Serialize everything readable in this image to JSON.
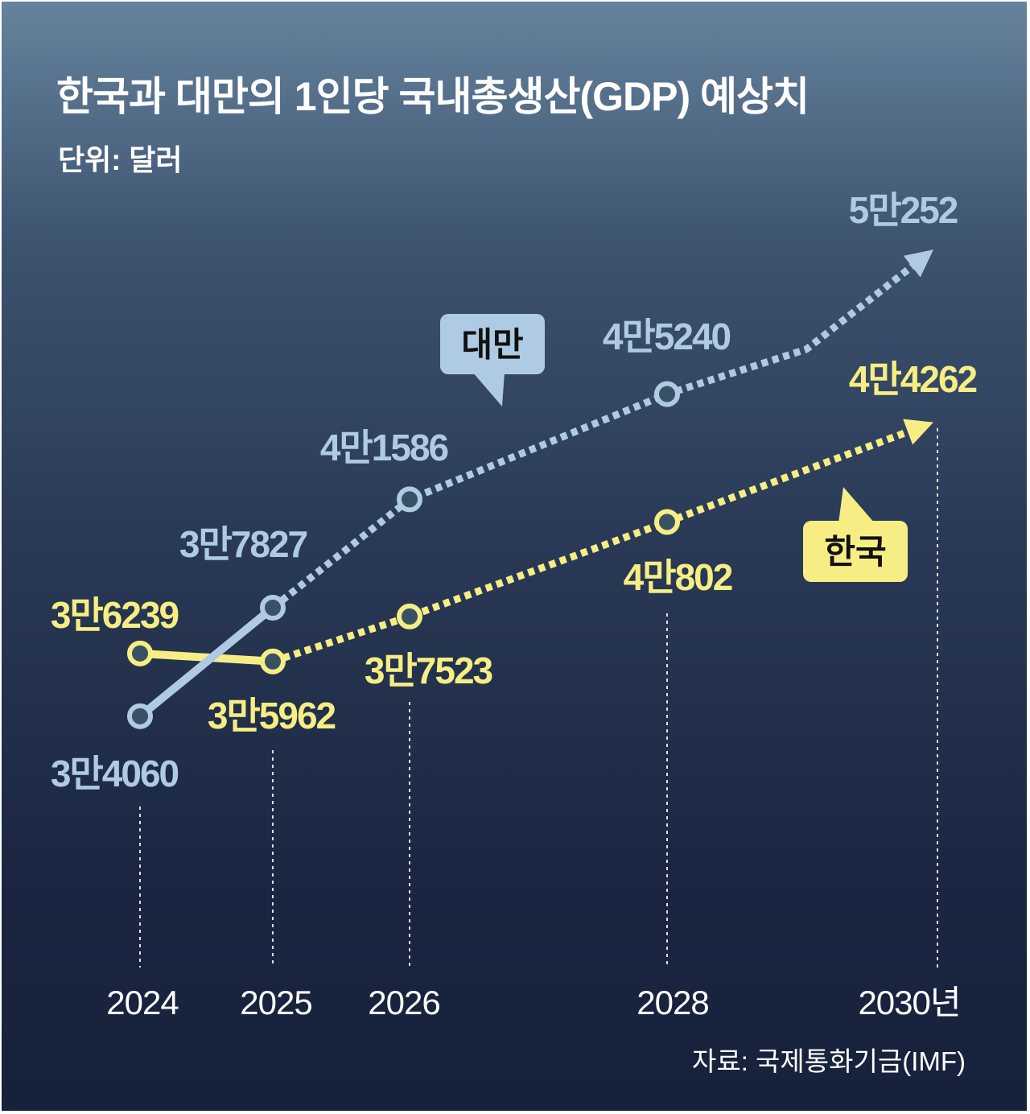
{
  "title": "한국과 대만의 1인당 국내총생산(GDP) 예상치",
  "unit": "단위: 달러",
  "source": "자료: 국제통화기금(IMF)",
  "colors": {
    "taiwan": "#aecbe3",
    "korea": "#f6ee84",
    "background_top": "#66839e",
    "background_bottom": "#16213b"
  },
  "chart_data": {
    "type": "line",
    "title": "한국과 대만의 1인당 국내총생산(GDP) 예상치",
    "ylabel": "단위: 달러",
    "x": [
      2024,
      2025,
      2026,
      2028,
      2030
    ],
    "x_tick_labels": [
      "2024",
      "2025",
      "2026",
      "2028",
      "2030년"
    ],
    "ylim": [
      34000,
      50500
    ],
    "series": [
      {
        "name": "대만",
        "color": "#aecbe3",
        "values": [
          34060,
          37827,
          41586,
          45240,
          50252
        ],
        "labels": [
          "3만4060",
          "3만7827",
          "4만1586",
          "4만5240",
          "5만252"
        ],
        "solid_segments": [
          [
            2024,
            2025
          ]
        ],
        "dotted_from": 2025,
        "markers_at": [
          2024,
          2025,
          2026,
          2028
        ],
        "arrow_at": 2030
      },
      {
        "name": "한국",
        "color": "#f6ee84",
        "values": [
          36239,
          35962,
          37523,
          40802,
          44262
        ],
        "labels": [
          "3만6239",
          "3만5962",
          "3만7523",
          "4만802",
          "4만4262"
        ],
        "solid_segments": [
          [
            2024,
            2025
          ]
        ],
        "dotted_from": 2025,
        "markers_at": [
          2024,
          2025,
          2026,
          2028
        ],
        "arrow_at": 2030
      }
    ]
  }
}
